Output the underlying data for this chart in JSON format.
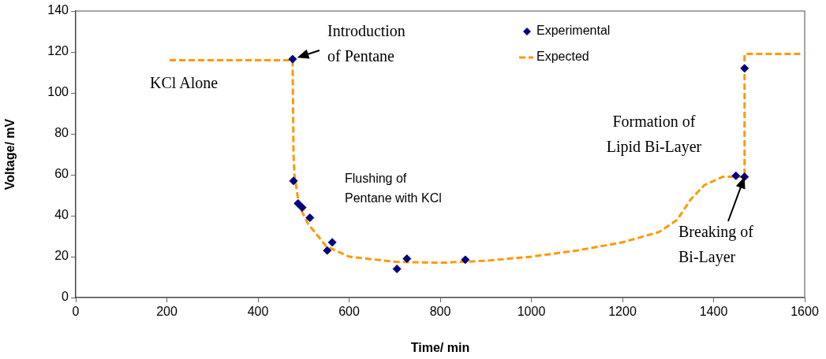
{
  "chart_data": {
    "type": "scatter",
    "xlabel": "Time/ min",
    "ylabel": "Voltage/ mV",
    "xlim": [
      0,
      1600
    ],
    "xticks": [
      0,
      200,
      400,
      600,
      800,
      1000,
      1200,
      1400,
      1600
    ],
    "ylim": [
      0,
      140
    ],
    "yticks": [
      0,
      20,
      40,
      60,
      80,
      100,
      120,
      140
    ],
    "grid": false,
    "legend": "top right",
    "series": [
      {
        "name": "Experimental",
        "type": "scatter",
        "marker": "diamond",
        "color": "#000080",
        "x": [
          476,
          478,
          488,
          497,
          514,
          552,
          563,
          705,
          727,
          855,
          1449,
          1468,
          1468
        ],
        "values": [
          116.5,
          57,
          46,
          44,
          39,
          23,
          27,
          14,
          19,
          18.5,
          59.5,
          59,
          112
        ]
      },
      {
        "name": "Expected",
        "type": "line",
        "line_style": "dashed",
        "marker": "none",
        "color": "#ff9900",
        "x": [
          206,
          476,
          478,
          480,
          490,
          510,
          550,
          600,
          700,
          800,
          900,
          1000,
          1100,
          1200,
          1280,
          1320,
          1350,
          1380,
          1420,
          1468,
          1468,
          1595
        ],
        "values": [
          116,
          116,
          70,
          60,
          45,
          36,
          25,
          20,
          17.5,
          17,
          18,
          20,
          23,
          27,
          32,
          38,
          48,
          55,
          59,
          59,
          119,
          119
        ]
      }
    ],
    "annotations": [
      {
        "text": "Introduction\nof Pentane",
        "x": 476,
        "y": 116.5
      },
      "KCl Alone",
      "Flushing of\nPentane with KCl",
      "Formation of\nLipid Bi-Layer",
      {
        "text": "Breaking of\nBi-Layer",
        "x": 1468,
        "y": 59
      }
    ]
  }
}
